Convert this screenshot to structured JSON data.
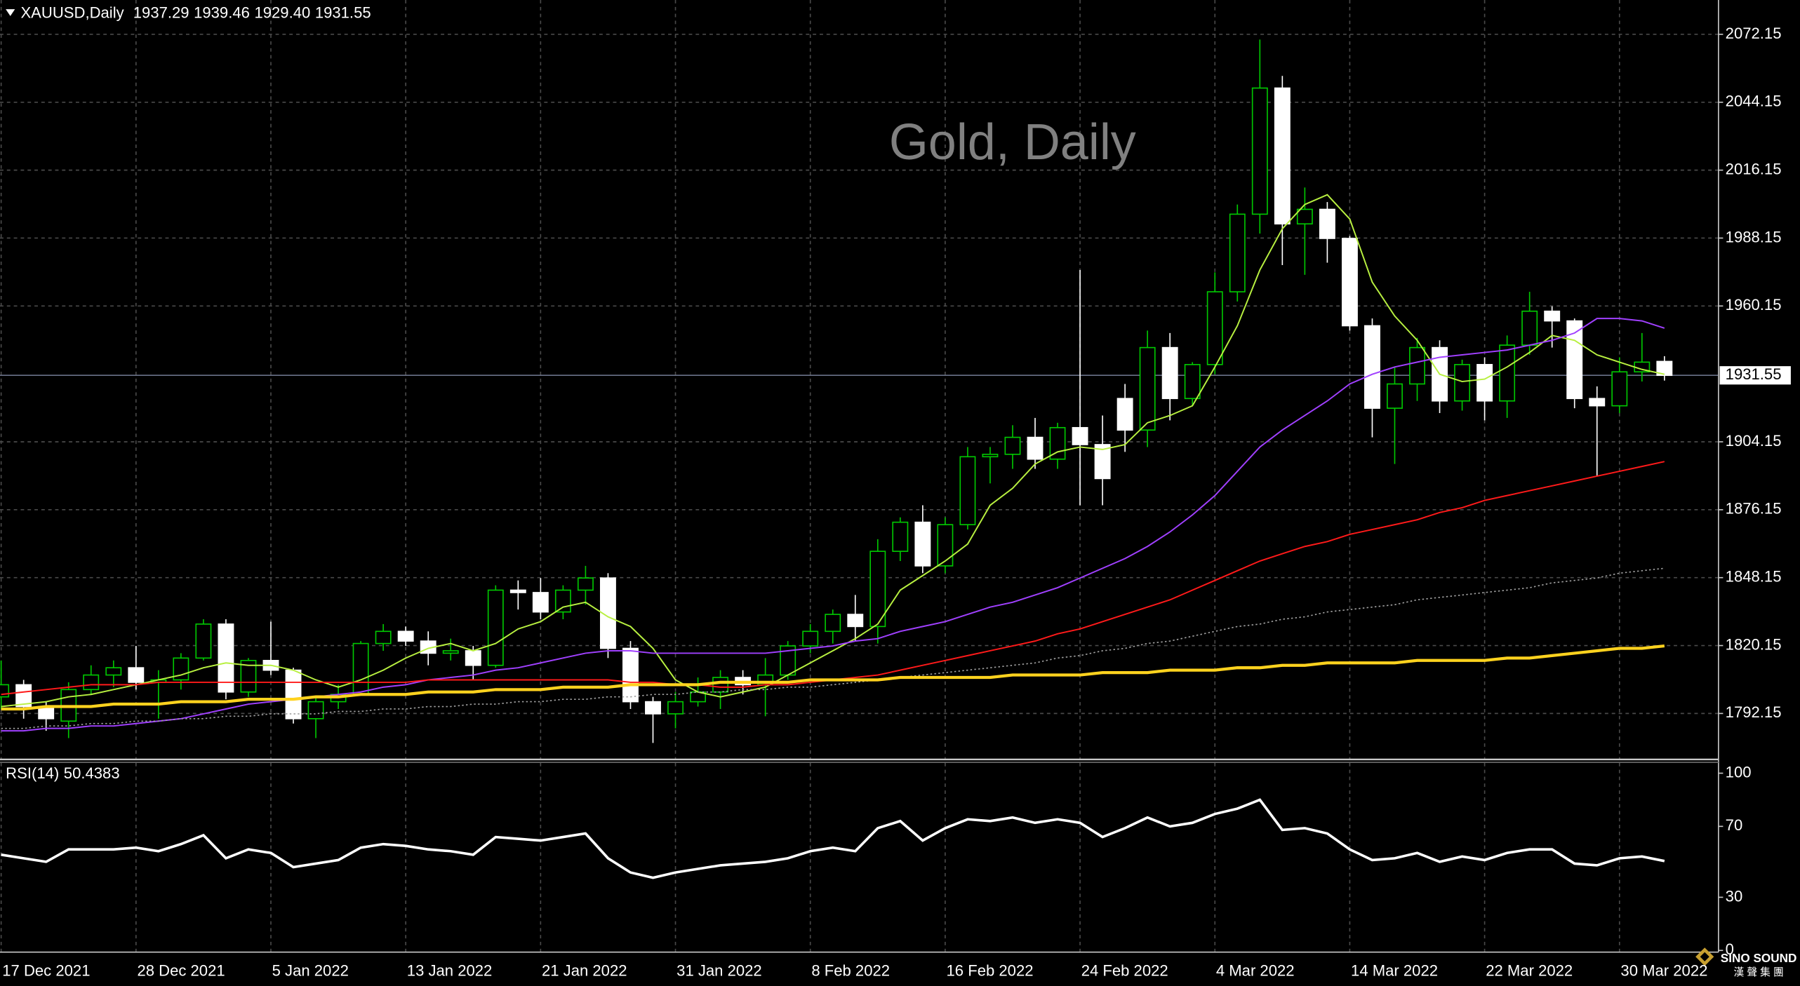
{
  "chart_data": {
    "type": "candlestick",
    "title": "Gold, Daily",
    "symbol": "XAUUSD,Daily",
    "ohlc_labels": [
      "1937.29",
      "1939.46",
      "1929.40",
      "1931.55"
    ],
    "categories": [
      "17 Dec 2021",
      null,
      null,
      null,
      null,
      null,
      "28 Dec 2021",
      null,
      null,
      null,
      null,
      null,
      "5 Jan 2022",
      null,
      null,
      null,
      null,
      null,
      "13 Jan 2022",
      null,
      null,
      null,
      null,
      null,
      "21 Jan 2022",
      null,
      null,
      null,
      null,
      null,
      "31 Jan 2022",
      null,
      null,
      null,
      null,
      null,
      "8 Feb 2022",
      null,
      null,
      null,
      null,
      null,
      "16 Feb 2022",
      null,
      null,
      null,
      null,
      null,
      "24 Feb 2022",
      null,
      null,
      null,
      null,
      null,
      "4 Mar 2022",
      null,
      null,
      null,
      null,
      null,
      "14 Mar 2022",
      null,
      null,
      null,
      null,
      null,
      "22 Mar 2022",
      null,
      null,
      null,
      null,
      null,
      "30 Mar 2022",
      null,
      null
    ],
    "open": [
      1799,
      1804,
      1795,
      1789,
      1802,
      1808,
      1811,
      1805,
      1806,
      1815,
      1829,
      1801,
      1814,
      1810,
      1790,
      1797,
      1800,
      1821,
      1826,
      1822,
      1817,
      1818,
      1812,
      1843,
      1842,
      1834,
      1843,
      1848,
      1819,
      1797,
      1792,
      1797,
      1801,
      1807,
      1804,
      1808,
      1820,
      1826,
      1833,
      1828,
      1859,
      1871,
      1853,
      1870,
      1898,
      1899,
      1906,
      1897,
      1910,
      1903,
      1922,
      1909,
      1943,
      1922,
      1936,
      1966,
      1998,
      2050,
      1994,
      2000,
      1988,
      1952,
      1918,
      1928,
      1943,
      1921,
      1936,
      1921,
      1944,
      1958,
      1954,
      1922,
      1919,
      1933,
      1937.29
    ],
    "high": [
      1814,
      1806,
      1797,
      1805,
      1812,
      1814,
      1820,
      1810,
      1817,
      1831,
      1831,
      1815,
      1830,
      1811,
      1799,
      1804,
      1822,
      1829,
      1828,
      1826,
      1823,
      1820,
      1845,
      1847,
      1848,
      1845,
      1853,
      1850,
      1822,
      1799,
      1801,
      1807,
      1810,
      1810,
      1815,
      1822,
      1829,
      1835,
      1841,
      1864,
      1873,
      1878,
      1873,
      1902,
      1902,
      1911,
      1914,
      1912,
      1975,
      1915,
      1928,
      1950,
      1949,
      1937,
      1974,
      2002,
      2070,
      2055,
      2009,
      2003,
      1989,
      1955,
      1935,
      1947,
      1946,
      1938,
      1939,
      1948,
      1966,
      1960,
      1955,
      1927,
      1939,
      1949,
      1939.46
    ],
    "low": [
      1794,
      1790,
      1785,
      1782,
      1800,
      1803,
      1802,
      1790,
      1802,
      1814,
      1798,
      1799,
      1808,
      1788,
      1782,
      1794,
      1800,
      1818,
      1820,
      1812,
      1814,
      1806,
      1811,
      1835,
      1831,
      1831,
      1837,
      1815,
      1794,
      1780,
      1786,
      1795,
      1794,
      1800,
      1791,
      1806,
      1817,
      1821,
      1822,
      1821,
      1855,
      1850,
      1850,
      1868,
      1887,
      1893,
      1893,
      1893,
      1878,
      1878,
      1900,
      1902,
      1913,
      1919,
      1932,
      1962,
      1990,
      1977,
      1973,
      1978,
      1950,
      1906,
      1895,
      1921,
      1916,
      1917,
      1913,
      1914,
      1940,
      1943,
      1918,
      1890,
      1916,
      1929,
      1929.4
    ],
    "close": [
      1804,
      1795,
      1790,
      1802,
      1808,
      1811,
      1805,
      1806,
      1815,
      1829,
      1801,
      1814,
      1810,
      1790,
      1797,
      1800,
      1821,
      1826,
      1822,
      1817,
      1818,
      1812,
      1843,
      1842,
      1834,
      1843,
      1848,
      1819,
      1797,
      1792,
      1797,
      1801,
      1807,
      1804,
      1808,
      1820,
      1826,
      1833,
      1828,
      1859,
      1871,
      1853,
      1870,
      1898,
      1899,
      1906,
      1897,
      1910,
      1903,
      1889,
      1909,
      1943,
      1922,
      1936,
      1966,
      1998,
      2050,
      1994,
      2000,
      1988,
      1952,
      1918,
      1928,
      1943,
      1921,
      1936,
      1921,
      1944,
      1958,
      1954,
      1922,
      1919,
      1933,
      1937,
      1931.55
    ],
    "bull_color": "#00c800",
    "bear_color": "#ffffff",
    "ylim": [
      1773.2,
      2086.3
    ],
    "yticks": [
      2072.15,
      2044.15,
      2016.15,
      1988.15,
      1960.15,
      1904.15,
      1876.15,
      1848.15,
      1820.15,
      1792.15
    ],
    "grid": true,
    "series": [
      {
        "color": "#b8f040",
        "values": [
          1795,
          1796,
          1797,
          1799,
          1800,
          1802,
          1804,
          1806,
          1808,
          1811,
          1813,
          1812,
          1812,
          1810,
          1806,
          1803,
          1806,
          1810,
          1815,
          1819,
          1821,
          1818,
          1821,
          1827,
          1830,
          1836,
          1838,
          1832,
          1828,
          1819,
          1806,
          1801,
          1799,
          1801,
          1803,
          1808,
          1813,
          1818,
          1823,
          1829,
          1843,
          1849,
          1855,
          1862,
          1878,
          1885,
          1895,
          1900,
          1902,
          1901,
          1903,
          1912,
          1915,
          1919,
          1935,
          1952,
          1975,
          1992,
          2002,
          2006,
          1996,
          1970,
          1956,
          1946,
          1932,
          1929,
          1930,
          1935,
          1941,
          1948,
          1946,
          1940,
          1937,
          1934,
          1932
        ]
      },
      {
        "color": "#a040ff",
        "values": [
          1785,
          1785,
          1786,
          1786,
          1787,
          1787,
          1788,
          1789,
          1790,
          1792,
          1794,
          1796,
          1797,
          1798,
          1799,
          1800,
          1801,
          1803,
          1804,
          1806,
          1807,
          1808,
          1810,
          1811,
          1813,
          1815,
          1817,
          1818,
          1818,
          1817,
          1817,
          1817,
          1817,
          1817,
          1817,
          1818,
          1819,
          1820,
          1822,
          1823,
          1826,
          1828,
          1830,
          1833,
          1836,
          1838,
          1841,
          1844,
          1848,
          1852,
          1856,
          1861,
          1867,
          1874,
          1882,
          1892,
          1902,
          1909,
          1915,
          1921,
          1928,
          1932,
          1935,
          1937,
          1939,
          1940,
          1941,
          1942,
          1944,
          1946,
          1949,
          1955,
          1955,
          1954,
          1951
        ]
      },
      {
        "color": "#ff1a1a",
        "values": [
          1800,
          1801,
          1802,
          1803,
          1804,
          1804,
          1804,
          1805,
          1805,
          1805,
          1805,
          1805,
          1805,
          1805,
          1805,
          1805,
          1805,
          1805,
          1805,
          1806,
          1806,
          1806,
          1806,
          1806,
          1806,
          1806,
          1806,
          1806,
          1805,
          1805,
          1804,
          1804,
          1803,
          1803,
          1804,
          1804,
          1805,
          1806,
          1807,
          1808,
          1810,
          1812,
          1814,
          1816,
          1818,
          1820,
          1822,
          1825,
          1827,
          1830,
          1833,
          1836,
          1839,
          1843,
          1847,
          1851,
          1855,
          1858,
          1861,
          1863,
          1866,
          1868,
          1870,
          1872,
          1875,
          1877,
          1880,
          1882,
          1884,
          1886,
          1888,
          1890,
          1892,
          1894,
          1896
        ]
      },
      {
        "color": "#a0a0a0",
        "line_style": "dotted",
        "values": [
          1786,
          1786,
          1787,
          1787,
          1788,
          1788,
          1789,
          1789,
          1790,
          1790,
          1791,
          1791,
          1792,
          1792,
          1792,
          1793,
          1793,
          1794,
          1794,
          1795,
          1795,
          1796,
          1796,
          1797,
          1797,
          1798,
          1798,
          1799,
          1799,
          1800,
          1800,
          1801,
          1801,
          1802,
          1802,
          1803,
          1803,
          1804,
          1805,
          1806,
          1807,
          1808,
          1809,
          1810,
          1811,
          1812,
          1813,
          1815,
          1816,
          1818,
          1819,
          1821,
          1822,
          1824,
          1826,
          1828,
          1829,
          1831,
          1832,
          1834,
          1835,
          1836,
          1837,
          1839,
          1840,
          1841,
          1842,
          1843,
          1844,
          1846,
          1847,
          1848,
          1850,
          1851,
          1852
        ]
      },
      {
        "color": "#ffd21e",
        "line_style": "bold",
        "values": [
          1794,
          1794,
          1795,
          1795,
          1795,
          1796,
          1796,
          1796,
          1797,
          1797,
          1797,
          1798,
          1798,
          1798,
          1799,
          1799,
          1800,
          1800,
          1800,
          1801,
          1801,
          1801,
          1802,
          1802,
          1802,
          1803,
          1803,
          1803,
          1804,
          1804,
          1804,
          1804,
          1805,
          1805,
          1805,
          1805,
          1806,
          1806,
          1806,
          1806,
          1807,
          1807,
          1807,
          1807,
          1807,
          1808,
          1808,
          1808,
          1808,
          1809,
          1809,
          1809,
          1810,
          1810,
          1810,
          1811,
          1811,
          1812,
          1812,
          1813,
          1813,
          1813,
          1813,
          1814,
          1814,
          1814,
          1814,
          1815,
          1815,
          1816,
          1817,
          1818,
          1819,
          1819,
          1820
        ]
      }
    ],
    "rsi": {
      "title": "RSI(14)",
      "color": "#ffffff",
      "ylim": [
        0,
        100
      ],
      "yticks": [
        100,
        70,
        30,
        0
      ],
      "values": [
        54,
        52,
        50,
        57,
        57,
        57,
        58,
        56,
        60,
        65,
        52,
        57,
        55,
        47,
        49,
        51,
        58,
        60,
        59,
        57,
        56,
        54,
        64,
        63,
        62,
        64,
        66,
        52,
        44,
        41,
        44,
        46,
        48,
        49,
        50,
        52,
        56,
        58,
        56,
        69,
        73,
        62,
        69,
        74,
        73,
        75,
        72,
        74,
        72,
        64,
        69,
        75,
        70,
        72,
        77,
        80,
        85,
        68,
        69,
        66,
        57,
        51,
        52,
        55,
        50,
        53,
        51,
        55,
        57,
        57,
        49,
        48,
        52,
        53,
        50.4383
      ]
    },
    "watermark": {
      "name": "SINO SOUND",
      "sub": "漢 聲 集 團"
    }
  }
}
